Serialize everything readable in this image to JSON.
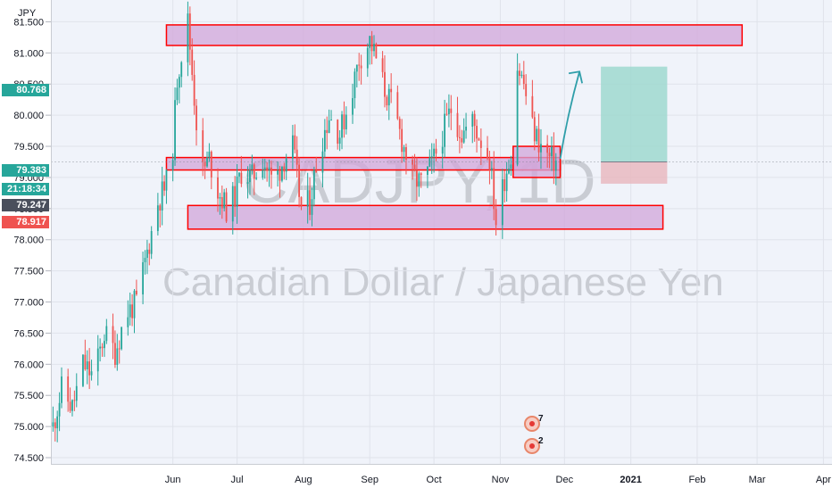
{
  "symbol": "CADJPY, 1D",
  "description": "Canadian Dollar / Japanese Yen",
  "currency": "JPY",
  "colors": {
    "up": "#26a69a",
    "down": "#ef5350",
    "zone_fill": "#d1a6d9",
    "zone_border": "#ff0000",
    "badge_last": "#26a69a",
    "badge_timer": "#26a69a",
    "badge_prev": "#4a4f5c",
    "badge_low": "#ef5350",
    "target_fill": "#9fd8cf",
    "stop_fill": "#e9b8bf",
    "arrow": "#2f9ea9"
  },
  "badges": {
    "last": "80.768",
    "ask": "79.383",
    "timer": "21:18:34",
    "prev": "79.247",
    "low": "78.917"
  },
  "markers": [
    {
      "count": "7"
    },
    {
      "count": "2"
    }
  ],
  "chart_data": {
    "type": "candlestick",
    "ylim": [
      74.4,
      81.85
    ],
    "y_ticks": [
      81.5,
      81.0,
      80.5,
      80.0,
      79.5,
      79.0,
      78.5,
      78.0,
      77.5,
      77.0,
      76.5,
      76.0,
      75.5,
      75.0,
      74.5
    ],
    "y_tick_labels": [
      "81.500",
      "81.000",
      "80.500",
      "80.000",
      "79.500",
      "79.000",
      "78.500",
      "78.000",
      "77.500",
      "77.000",
      "76.500",
      "76.000",
      "75.500",
      "75.000",
      "74.500"
    ],
    "x_ticks": [
      {
        "label": "Jun",
        "date": "2020-06-01"
      },
      {
        "label": "Jul",
        "date": "2020-07-01"
      },
      {
        "label": "Aug",
        "date": "2020-08-01"
      },
      {
        "label": "Sep",
        "date": "2020-09-01"
      },
      {
        "label": "Oct",
        "date": "2020-10-01"
      },
      {
        "label": "Nov",
        "date": "2020-11-01"
      },
      {
        "label": "Dec",
        "date": "2020-12-01"
      },
      {
        "label": "2021",
        "date": "2021-01-01"
      },
      {
        "label": "Feb",
        "date": "2021-02-01"
      },
      {
        "label": "Mar",
        "date": "2021-03-01"
      },
      {
        "label": "Apr",
        "date": "2021-04-01"
      }
    ],
    "x_range": [
      "2020-04-05",
      "2021-04-05"
    ],
    "path_points": [
      [
        "2020-04-06",
        75.0
      ],
      [
        "2020-04-10",
        75.6
      ],
      [
        "2020-04-15",
        75.3
      ],
      [
        "2020-04-20",
        76.0
      ],
      [
        "2020-04-25",
        75.8
      ],
      [
        "2020-04-30",
        76.5
      ],
      [
        "2020-05-05",
        76.2
      ],
      [
        "2020-05-10",
        76.8
      ],
      [
        "2020-05-15",
        77.0
      ],
      [
        "2020-05-20",
        77.8
      ],
      [
        "2020-05-25",
        78.6
      ],
      [
        "2020-05-29",
        78.9
      ],
      [
        "2020-06-01",
        79.5
      ],
      [
        "2020-06-03",
        80.6
      ],
      [
        "2020-06-05",
        81.0
      ],
      [
        "2020-06-08",
        81.5
      ],
      [
        "2020-06-10",
        80.7
      ],
      [
        "2020-06-12",
        79.9
      ],
      [
        "2020-06-15",
        79.1
      ],
      [
        "2020-06-18",
        79.3
      ],
      [
        "2020-06-22",
        78.8
      ],
      [
        "2020-06-26",
        78.5
      ],
      [
        "2020-06-30",
        78.7
      ],
      [
        "2020-07-03",
        79.1
      ],
      [
        "2020-07-08",
        79.0
      ],
      [
        "2020-07-13",
        79.3
      ],
      [
        "2020-07-18",
        78.9
      ],
      [
        "2020-07-23",
        79.3
      ],
      [
        "2020-07-27",
        79.5
      ],
      [
        "2020-07-31",
        78.5
      ],
      [
        "2020-08-04",
        78.6
      ],
      [
        "2020-08-08",
        79.4
      ],
      [
        "2020-08-13",
        80.0
      ],
      [
        "2020-08-18",
        79.7
      ],
      [
        "2020-08-23",
        80.3
      ],
      [
        "2020-08-27",
        80.9
      ],
      [
        "2020-09-01",
        81.2
      ],
      [
        "2020-09-04",
        80.9
      ],
      [
        "2020-09-08",
        80.4
      ],
      [
        "2020-09-12",
        80.1
      ],
      [
        "2020-09-16",
        79.6
      ],
      [
        "2020-09-21",
        79.0
      ],
      [
        "2020-09-25",
        78.9
      ],
      [
        "2020-09-30",
        79.2
      ],
      [
        "2020-10-05",
        79.7
      ],
      [
        "2020-10-09",
        80.1
      ],
      [
        "2020-10-14",
        79.7
      ],
      [
        "2020-10-19",
        79.9
      ],
      [
        "2020-10-23",
        79.6
      ],
      [
        "2020-10-27",
        79.3
      ],
      [
        "2020-10-30",
        78.3
      ],
      [
        "2020-11-03",
        79.0
      ],
      [
        "2020-11-06",
        79.4
      ],
      [
        "2020-11-09",
        80.8
      ],
      [
        "2020-11-12",
        80.5
      ],
      [
        "2020-11-16",
        79.8
      ],
      [
        "2020-11-20",
        79.5
      ],
      [
        "2020-11-24",
        79.3
      ],
      [
        "2020-11-27",
        79.25
      ]
    ],
    "zones": [
      {
        "from": "2020-05-29",
        "to": "2021-02-22",
        "high": 81.45,
        "low": 81.12
      },
      {
        "from": "2020-05-29",
        "to": "2020-11-29",
        "high": 79.32,
        "low": 79.12
      },
      {
        "from": "2020-06-08",
        "to": "2021-01-16",
        "high": 78.55,
        "low": 78.17
      },
      {
        "from": "2020-11-07",
        "to": "2020-11-29",
        "high": 79.5,
        "low": 79.0
      }
    ],
    "position": {
      "from": "2020-12-18",
      "to": "2021-01-18",
      "entry": 79.25,
      "target": 80.78,
      "stop": 78.9
    },
    "projection": [
      [
        "2020-11-29",
        79.3
      ],
      [
        "2020-12-08",
        80.7
      ]
    ]
  }
}
